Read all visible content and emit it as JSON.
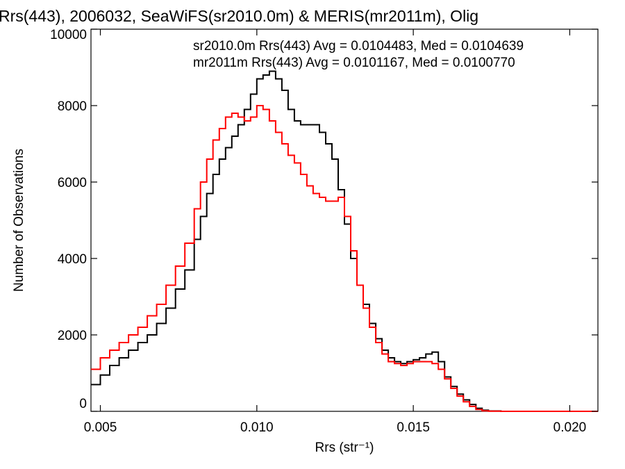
{
  "chart_data": {
    "type": "line",
    "step": true,
    "title": "Rrs(443), 2006032, SeaWiFS(sr2010.0m) & MERIS(mr2011m), Olig",
    "xlabel": "Rrs (str⁻¹)",
    "ylabel": "Number of Observations",
    "xlim": [
      0.0047,
      0.0209
    ],
    "ylim": [
      0,
      10000
    ],
    "xticks": [
      0.005,
      0.01,
      0.015,
      0.02
    ],
    "xtick_labels": [
      "0.005",
      "0.010",
      "0.015",
      "0.020"
    ],
    "yticks": [
      0,
      2000,
      4000,
      6000,
      8000,
      10000
    ],
    "ytick_labels": [
      "0",
      "2000",
      "4000",
      "6000",
      "8000",
      "10000"
    ],
    "grid": false,
    "legend_position": "top-right",
    "series": [
      {
        "name": "sr2010.0m Rrs(443) Avg = 0.0104483, Med = 0.0104639",
        "color": "#000000",
        "x": [
          0.0047,
          0.005,
          0.0053,
          0.0056,
          0.0059,
          0.0062,
          0.0065,
          0.0068,
          0.0071,
          0.0074,
          0.0077,
          0.008,
          0.0082,
          0.0084,
          0.0086,
          0.0088,
          0.009,
          0.0092,
          0.0094,
          0.0096,
          0.0098,
          0.01,
          0.0102,
          0.0104,
          0.0106,
          0.0108,
          0.011,
          0.0112,
          0.0114,
          0.0116,
          0.0118,
          0.012,
          0.0122,
          0.0124,
          0.0126,
          0.0128,
          0.013,
          0.0132,
          0.0134,
          0.0136,
          0.0138,
          0.014,
          0.0142,
          0.0144,
          0.0146,
          0.0148,
          0.015,
          0.0152,
          0.0154,
          0.0156,
          0.0158,
          0.016,
          0.0162,
          0.0164,
          0.0166,
          0.0168,
          0.017,
          0.0172,
          0.0174,
          0.0178,
          0.0185,
          0.0195,
          0.0209
        ],
        "y": [
          700,
          950,
          1200,
          1400,
          1600,
          1800,
          2000,
          2300,
          2700,
          3200,
          3700,
          4500,
          5100,
          5700,
          6200,
          6600,
          6900,
          7200,
          7500,
          7900,
          8300,
          8700,
          8800,
          8900,
          8700,
          8400,
          7900,
          7600,
          7500,
          7500,
          7500,
          7300,
          7000,
          6600,
          5800,
          4900,
          4000,
          3300,
          2800,
          2300,
          1900,
          1600,
          1400,
          1300,
          1250,
          1300,
          1350,
          1400,
          1500,
          1550,
          1300,
          900,
          650,
          450,
          300,
          180,
          80,
          30,
          10,
          0,
          0,
          0,
          0
        ]
      },
      {
        "name": "mr2011m Rrs(443) Avg = 0.0101167, Med = 0.0100770",
        "color": "#ff0000",
        "x": [
          0.0047,
          0.005,
          0.0053,
          0.0056,
          0.0059,
          0.0062,
          0.0065,
          0.0068,
          0.0071,
          0.0074,
          0.0077,
          0.008,
          0.0082,
          0.0084,
          0.0086,
          0.0088,
          0.009,
          0.0092,
          0.0094,
          0.0096,
          0.0098,
          0.01,
          0.0102,
          0.0104,
          0.0106,
          0.0108,
          0.011,
          0.0112,
          0.0114,
          0.0116,
          0.0118,
          0.012,
          0.0122,
          0.0124,
          0.0126,
          0.0128,
          0.013,
          0.0132,
          0.0134,
          0.0136,
          0.0138,
          0.014,
          0.0142,
          0.0144,
          0.0146,
          0.0148,
          0.015,
          0.0152,
          0.0154,
          0.0156,
          0.0158,
          0.016,
          0.0162,
          0.0164,
          0.0166,
          0.0168,
          0.017,
          0.0172,
          0.0174,
          0.0178,
          0.0185,
          0.0195,
          0.0209
        ],
        "y": [
          1100,
          1400,
          1600,
          1800,
          2000,
          2200,
          2500,
          2800,
          3300,
          3800,
          4400,
          5300,
          6000,
          6600,
          7100,
          7400,
          7700,
          7800,
          7700,
          7600,
          7700,
          8000,
          7900,
          7600,
          7300,
          7000,
          6700,
          6500,
          6200,
          5900,
          5700,
          5600,
          5500,
          5500,
          5600,
          5100,
          4200,
          3300,
          2700,
          2200,
          1800,
          1500,
          1300,
          1250,
          1200,
          1250,
          1300,
          1300,
          1300,
          1250,
          1100,
          850,
          600,
          400,
          250,
          130,
          50,
          15,
          5,
          0,
          0,
          0,
          0
        ]
      }
    ]
  }
}
